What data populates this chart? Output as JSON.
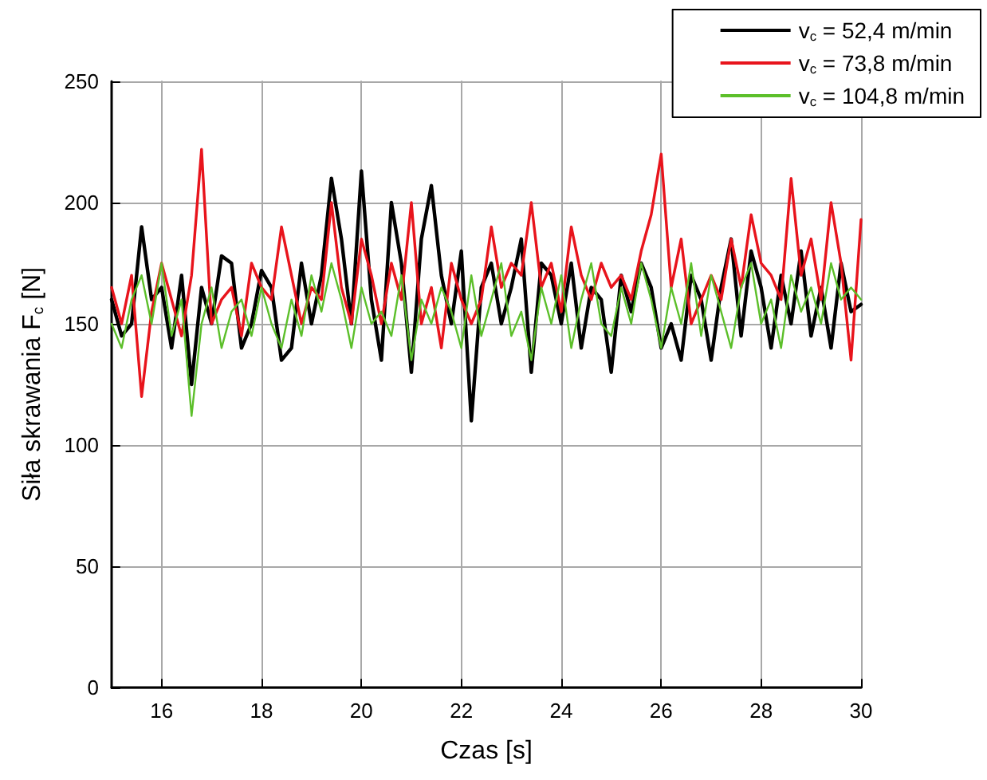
{
  "chart_data": {
    "type": "line",
    "xlabel": "Czas [s]",
    "ylabel": "Siła skrawania F$_{c}$ [N]",
    "x": [
      15.0,
      15.2,
      15.4,
      15.6,
      15.8,
      16.0,
      16.2,
      16.4,
      16.6,
      16.8,
      17.0,
      17.2,
      17.4,
      17.6,
      17.8,
      18.0,
      18.2,
      18.4,
      18.6,
      18.8,
      19.0,
      19.2,
      19.4,
      19.6,
      19.8,
      20.0,
      20.2,
      20.4,
      20.6,
      20.8,
      21.0,
      21.2,
      21.4,
      21.6,
      21.8,
      22.0,
      22.2,
      22.4,
      22.6,
      22.8,
      23.0,
      23.2,
      23.4,
      23.6,
      23.8,
      24.0,
      24.2,
      24.4,
      24.6,
      24.8,
      25.0,
      25.2,
      25.4,
      25.6,
      25.8,
      26.0,
      26.2,
      26.4,
      26.6,
      26.8,
      27.0,
      27.2,
      27.4,
      27.6,
      27.8,
      28.0,
      28.2,
      28.4,
      28.6,
      28.8,
      29.0,
      29.2,
      29.4,
      29.6,
      29.8,
      30.0
    ],
    "series": [
      {
        "name": "v$_{c}$ = 52,4 m/min",
        "color": "#000000",
        "values": [
          160,
          145,
          150,
          190,
          160,
          165,
          140,
          170,
          125,
          165,
          150,
          178,
          175,
          140,
          150,
          172,
          165,
          135,
          140,
          175,
          150,
          170,
          210,
          185,
          150,
          213,
          160,
          135,
          200,
          175,
          130,
          185,
          207,
          170,
          150,
          180,
          110,
          165,
          175,
          150,
          165,
          185,
          130,
          175,
          170,
          150,
          175,
          140,
          165,
          160,
          130,
          170,
          155,
          175,
          165,
          140,
          150,
          135,
          170,
          160,
          135,
          165,
          185,
          145,
          180,
          165,
          140,
          170,
          150,
          180,
          145,
          165,
          140,
          175,
          155,
          158
        ]
      },
      {
        "name": "v$_{c}$ = 73,8 m/min",
        "color": "#e8141c",
        "values": [
          165,
          150,
          170,
          120,
          155,
          175,
          160,
          145,
          170,
          222,
          150,
          160,
          165,
          145,
          175,
          165,
          160,
          190,
          170,
          150,
          165,
          160,
          200,
          165,
          150,
          185,
          170,
          150,
          175,
          160,
          200,
          150,
          165,
          140,
          175,
          160,
          150,
          160,
          190,
          165,
          175,
          170,
          200,
          165,
          175,
          155,
          190,
          170,
          160,
          175,
          165,
          170,
          160,
          180,
          195,
          220,
          165,
          185,
          150,
          160,
          170,
          160,
          185,
          165,
          195,
          175,
          170,
          160,
          210,
          170,
          185,
          160,
          200,
          175,
          135,
          193
        ]
      },
      {
        "name": "v$_{c}$ = 104,8 m/min",
        "color": "#5cbf2a",
        "values": [
          150,
          140,
          160,
          170,
          150,
          175,
          145,
          160,
          112,
          150,
          165,
          140,
          155,
          160,
          145,
          165,
          150,
          140,
          160,
          145,
          170,
          155,
          175,
          160,
          140,
          165,
          150,
          155,
          145,
          170,
          135,
          160,
          150,
          165,
          155,
          140,
          170,
          145,
          160,
          175,
          145,
          155,
          135,
          165,
          150,
          170,
          140,
          160,
          175,
          150,
          145,
          165,
          150,
          175,
          160,
          140,
          165,
          150,
          175,
          145,
          170,
          155,
          140,
          165,
          175,
          150,
          160,
          140,
          170,
          155,
          165,
          150,
          175,
          160,
          165,
          160
        ]
      }
    ],
    "xlim": [
      15,
      30
    ],
    "xticks": [
      16,
      18,
      20,
      22,
      24,
      26,
      28,
      30
    ],
    "ylim": [
      0,
      250
    ],
    "yticks": [
      0,
      50,
      100,
      150,
      200,
      250
    ],
    "grid": true,
    "legend": "top right",
    "marker": "none",
    "line_style": "solid"
  }
}
